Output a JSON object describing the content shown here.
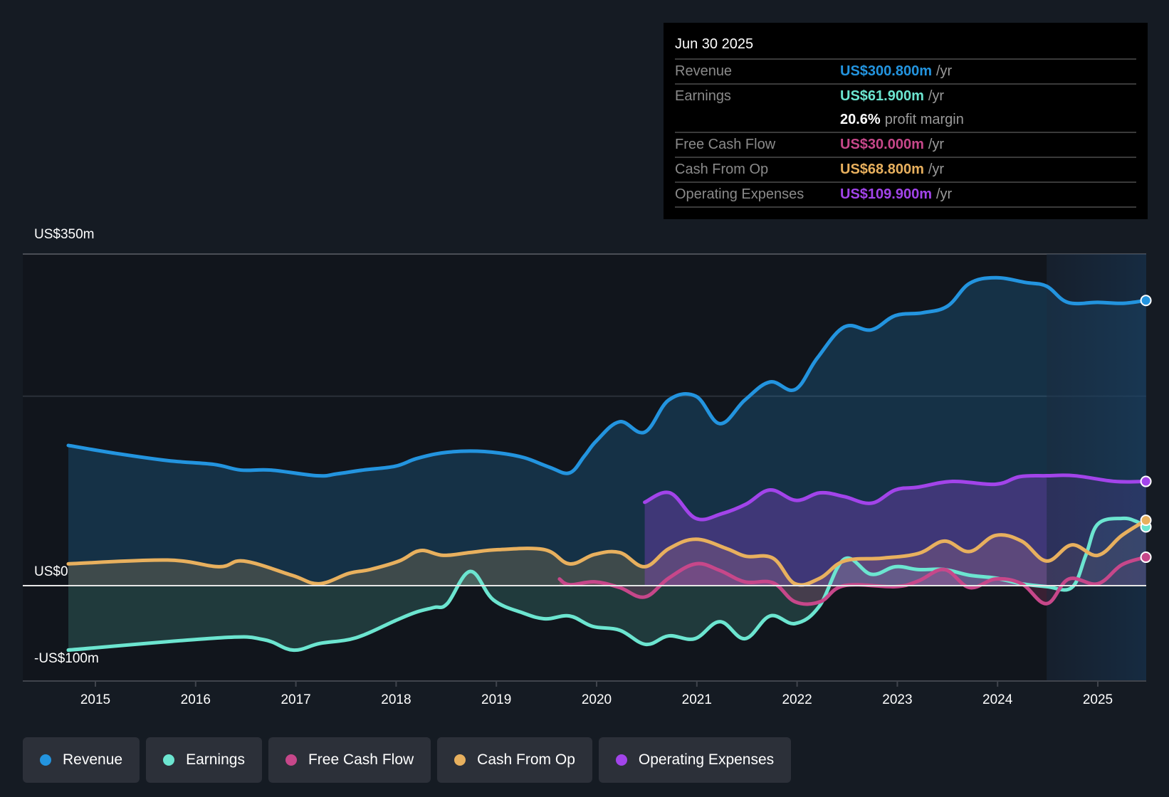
{
  "tooltip": {
    "date": "Jun 30 2025",
    "rows": [
      {
        "label": "Revenue",
        "value": "US$300.800m",
        "unit": "/yr",
        "color": "#2394df"
      },
      {
        "label": "Earnings",
        "value": "US$61.900m",
        "unit": "/yr",
        "color": "#6ce5d0"
      },
      {
        "label": "",
        "value": "20.6%",
        "unit": "profit margin",
        "color": "#ffffff"
      },
      {
        "label": "Free Cash Flow",
        "value": "US$30.000m",
        "unit": "/yr",
        "color": "#c7478a"
      },
      {
        "label": "Cash From Op",
        "value": "US$68.800m",
        "unit": "/yr",
        "color": "#e8b05e"
      },
      {
        "label": "Operating Expenses",
        "value": "US$109.900m",
        "unit": "/yr",
        "color": "#a244ea"
      }
    ]
  },
  "legend": [
    {
      "label": "Revenue",
      "color": "#2394df"
    },
    {
      "label": "Earnings",
      "color": "#6ce5d0"
    },
    {
      "label": "Free Cash Flow",
      "color": "#c7478a"
    },
    {
      "label": "Cash From Op",
      "color": "#e8b05e"
    },
    {
      "label": "Operating Expenses",
      "color": "#a244ea"
    }
  ],
  "chart_data": {
    "type": "area",
    "title": "",
    "xlabel": "",
    "ylabel": "",
    "xlim": [
      2014.45,
      2025.48
    ],
    "ylim": [
      -100,
      350
    ],
    "highlight_start": 2024.49,
    "y_tick_labels": [
      {
        "value": 350,
        "label": "US$350m"
      },
      {
        "value": 0,
        "label": "US$0"
      },
      {
        "value": -100,
        "label": "-US$100m"
      }
    ],
    "gridlines": [
      350,
      200
    ],
    "x_ticks": [
      2015,
      2016,
      2017,
      2018,
      2019,
      2020,
      2021,
      2022,
      2023,
      2024,
      2025
    ],
    "x_tick_labels": [
      "2015",
      "2016",
      "2017",
      "2018",
      "2019",
      "2020",
      "2021",
      "2022",
      "2023",
      "2024",
      "2025"
    ],
    "legend_position": "bottom",
    "series": [
      {
        "name": "Revenue",
        "color": "#2394df",
        "x": [
          2014.73,
          2015.18,
          2015.72,
          2016.18,
          2016.45,
          2016.75,
          2017.21,
          2017.41,
          2017.67,
          2017.99,
          2018.2,
          2018.45,
          2018.74,
          2019.03,
          2019.28,
          2019.53,
          2019.73,
          2019.88,
          2020.0,
          2020.23,
          2020.48,
          2020.72,
          2020.99,
          2021.23,
          2021.48,
          2021.73,
          2021.98,
          2022.2,
          2022.47,
          2022.74,
          2022.98,
          2023.25,
          2023.5,
          2023.72,
          2023.98,
          2024.28,
          2024.49,
          2024.7,
          2025.0,
          2025.25,
          2025.48
        ],
        "values": [
          148,
          140,
          132,
          128,
          122,
          122,
          116,
          118,
          122,
          126,
          134,
          140,
          142,
          140,
          135,
          125,
          119,
          137,
          153,
          173,
          162,
          196,
          200,
          171,
          196,
          215,
          207,
          240,
          273,
          270,
          285,
          288,
          295,
          319,
          325,
          320,
          316,
          299,
          299,
          298,
          301
        ]
      },
      {
        "name": "Earnings",
        "color": "#6ce5d0",
        "x": [
          2014.73,
          2016.25,
          2016.68,
          2016.97,
          2017.24,
          2017.6,
          2017.99,
          2018.2,
          2018.38,
          2018.51,
          2018.74,
          2018.97,
          2019.27,
          2019.49,
          2019.73,
          2019.96,
          2020.23,
          2020.49,
          2020.72,
          2020.98,
          2021.23,
          2021.48,
          2021.73,
          2021.98,
          2022.22,
          2022.47,
          2022.74,
          2022.98,
          2023.21,
          2023.47,
          2023.72,
          2023.98,
          2024.24,
          2024.49,
          2024.74,
          2024.88,
          2025.0,
          2025.24,
          2025.38,
          2025.48
        ],
        "values": [
          -68,
          -55,
          -57,
          -68,
          -61,
          -55,
          -37,
          -28,
          -23,
          -19,
          15,
          -15,
          -29,
          -35,
          -32,
          -43,
          -47,
          -62,
          -53,
          -56,
          -38,
          -56,
          -32,
          -40,
          -22,
          28,
          12,
          20,
          17,
          17,
          11,
          8,
          2,
          -1,
          -2,
          32,
          65,
          71,
          68,
          62
        ]
      },
      {
        "name": "Free Cash Flow",
        "color": "#c7478a",
        "x": [
          2019.63,
          2019.73,
          2019.98,
          2020.23,
          2020.48,
          2020.72,
          2020.99,
          2021.23,
          2021.48,
          2021.76,
          2021.98,
          2022.23,
          2022.47,
          2022.98,
          2023.21,
          2023.47,
          2023.72,
          2023.98,
          2024.24,
          2024.49,
          2024.71,
          2025.0,
          2025.24,
          2025.48
        ],
        "values": [
          7,
          1,
          4,
          -2,
          -12,
          8,
          23,
          16,
          4,
          3,
          -17,
          -17,
          0,
          -1,
          5,
          17,
          -2,
          7,
          2,
          -19,
          7,
          2,
          22,
          30
        ]
      },
      {
        "name": "Cash From Op",
        "color": "#e8b05e",
        "x": [
          2014.73,
          2015.72,
          2016.23,
          2016.48,
          2016.96,
          2017.23,
          2017.53,
          2017.74,
          2018.03,
          2018.24,
          2018.47,
          2018.74,
          2019.02,
          2019.48,
          2019.73,
          2019.98,
          2020.23,
          2020.48,
          2020.72,
          2020.99,
          2021.3,
          2021.49,
          2021.76,
          2021.98,
          2022.23,
          2022.47,
          2022.85,
          2023.21,
          2023.47,
          2023.72,
          2023.98,
          2024.24,
          2024.49,
          2024.74,
          2025.0,
          2025.24,
          2025.48
        ],
        "values": [
          23,
          27,
          20,
          26,
          11,
          2,
          13,
          17,
          26,
          37,
          32,
          35,
          38,
          38,
          23,
          33,
          35,
          20,
          39,
          49,
          39,
          31,
          29,
          2,
          8,
          26,
          29,
          34,
          47,
          36,
          53,
          47,
          26,
          43,
          32,
          53,
          69
        ]
      },
      {
        "name": "Operating Expenses",
        "color": "#a244ea",
        "x": [
          2020.48,
          2020.73,
          2020.99,
          2021.25,
          2021.49,
          2021.73,
          2021.99,
          2022.23,
          2022.47,
          2022.74,
          2022.98,
          2023.21,
          2023.55,
          2023.98,
          2024.22,
          2024.49,
          2024.77,
          2025.17,
          2025.48
        ],
        "values": [
          88,
          98,
          71,
          76,
          86,
          101,
          90,
          98,
          94,
          87,
          101,
          104,
          110,
          107,
          115,
          116,
          116,
          110,
          110
        ]
      }
    ]
  }
}
